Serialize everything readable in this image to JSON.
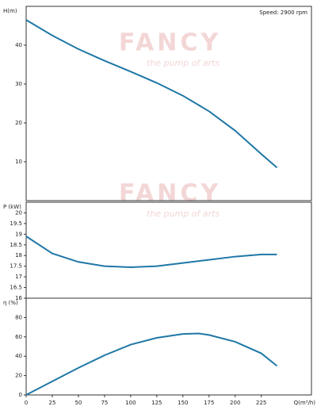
{
  "speed": "Speed: 2900 rpm",
  "watermark": {
    "title": "FANCY",
    "subtitle": "the pump of arts"
  },
  "chart_data": [
    {
      "type": "line",
      "y_label": "H(m)",
      "x": [
        0,
        25,
        50,
        75,
        100,
        125,
        150,
        175,
        200,
        225,
        240
      ],
      "values": [
        46.5,
        42.5,
        39,
        36,
        33.2,
        30.3,
        27,
        23,
        18,
        12,
        8.5
      ],
      "color": "#1f77a6",
      "xlim": [
        0,
        273
      ],
      "ylim": [
        0,
        50
      ],
      "yticks": [
        10,
        20,
        30,
        40
      ]
    },
    {
      "type": "line",
      "y_label": "P (kW)",
      "x": [
        0,
        25,
        50,
        75,
        100,
        125,
        150,
        175,
        200,
        225,
        240
      ],
      "values": [
        18.9,
        18.1,
        17.7,
        17.5,
        17.45,
        17.5,
        17.65,
        17.8,
        17.95,
        18.05,
        18.05
      ],
      "color": "#1f77a6",
      "xlim": [
        0,
        273
      ],
      "ylim": [
        16,
        20.5
      ],
      "yticks": [
        16,
        16.5,
        17,
        17.5,
        18,
        18.5,
        19,
        19.5,
        20
      ]
    },
    {
      "type": "line",
      "y_label": "η (%)",
      "x": [
        0,
        25,
        50,
        75,
        100,
        125,
        150,
        165,
        175,
        200,
        225,
        240
      ],
      "values": [
        0,
        14,
        28,
        41,
        52,
        59,
        63,
        63.5,
        62,
        55,
        43,
        30
      ],
      "color": "#1f77a6",
      "xlim": [
        0,
        273
      ],
      "ylim": [
        0,
        100
      ],
      "yticks": [
        0,
        20,
        40,
        60,
        80
      ],
      "x_label": "Q(m³/h)",
      "xticks": [
        0,
        25,
        50,
        75,
        100,
        125,
        150,
        175,
        200,
        225
      ]
    }
  ]
}
